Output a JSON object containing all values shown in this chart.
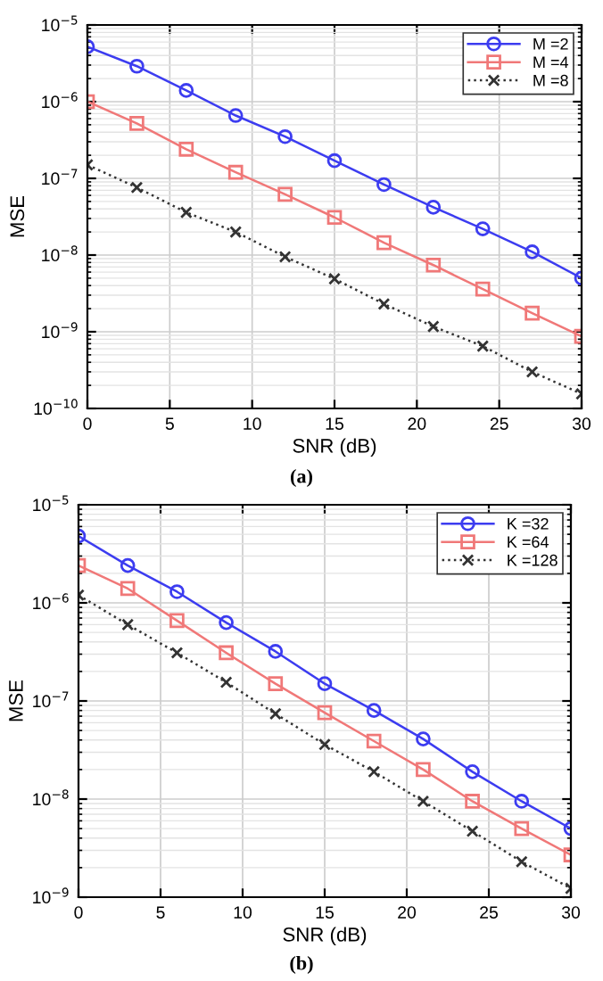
{
  "chart_data": [
    {
      "type": "line",
      "xlabel": "SNR (dB)",
      "ylabel": "MSE",
      "annotations": [
        "(a)"
      ],
      "log": "y",
      "grid": true,
      "legend": "top right",
      "x": [
        0,
        3,
        6,
        9,
        12,
        15,
        18,
        21,
        24,
        27,
        30
      ],
      "xlim": [
        0,
        30
      ],
      "xticks": [
        0,
        5,
        10,
        15,
        20,
        25,
        30
      ],
      "ylim": [
        1e-10,
        1e-05
      ],
      "yticks": [
        {
          "value": 1e-10,
          "label": "10$^{−10}$"
        },
        {
          "value": 1e-09,
          "label": "10$^{−9}$"
        },
        {
          "value": 1e-08,
          "label": "10$^{−8}$"
        },
        {
          "value": 1e-07,
          "label": "10$^{−7}$"
        },
        {
          "value": 1e-06,
          "label": "10$^{−6}$"
        },
        {
          "value": 1e-05,
          "label": "10$^{−5}$"
        }
      ],
      "series": [
        {
          "name": "M =2",
          "color": "#3c3cf0",
          "marker": "circle",
          "line_style": "solid",
          "values": [
            5.2e-06,
            2.9e-06,
            1.4e-06,
            6.6e-07,
            3.5e-07,
            1.7e-07,
            8.3e-08,
            4.2e-08,
            2.2e-08,
            1.1e-08,
            5e-09
          ]
        },
        {
          "name": "M =4",
          "color": "#f07878",
          "marker": "square",
          "line_style": "solid",
          "values": [
            1e-06,
            5.2e-07,
            2.4e-07,
            1.2e-07,
            6.2e-08,
            3.1e-08,
            1.45e-08,
            7.4e-09,
            3.6e-09,
            1.75e-09,
            8.7e-10
          ]
        },
        {
          "name": "M =8",
          "color": "#333333",
          "marker": "cross",
          "line_style": "dotted",
          "values": [
            1.5e-07,
            7.6e-08,
            3.6e-08,
            2e-08,
            9.5e-09,
            4.9e-09,
            2.3e-09,
            1.17e-09,
            6.5e-10,
            3e-10,
            1.55e-10
          ]
        }
      ]
    },
    {
      "type": "line",
      "xlabel": "SNR (dB)",
      "ylabel": "MSE",
      "annotations": [
        "(b)"
      ],
      "log": "y",
      "grid": true,
      "legend": "top right",
      "x": [
        0,
        3,
        6,
        9,
        12,
        15,
        18,
        21,
        24,
        27,
        30
      ],
      "xlim": [
        0,
        30
      ],
      "xticks": [
        0,
        5,
        10,
        15,
        20,
        25,
        30
      ],
      "ylim": [
        1e-09,
        1e-05
      ],
      "yticks": [
        {
          "value": 1e-09,
          "label": "10$^{−9}$"
        },
        {
          "value": 1e-08,
          "label": "10$^{−8}$"
        },
        {
          "value": 1e-07,
          "label": "10$^{−7}$"
        },
        {
          "value": 1e-06,
          "label": "10$^{−6}$"
        },
        {
          "value": 1e-05,
          "label": "10$^{−5}$"
        }
      ],
      "series": [
        {
          "name": "K =32",
          "color": "#3c3cf0",
          "marker": "circle",
          "line_style": "solid",
          "values": [
            4.8e-06,
            2.4e-06,
            1.3e-06,
            6.3e-07,
            3.2e-07,
            1.5e-07,
            8e-08,
            4.1e-08,
            1.9e-08,
            9.5e-09,
            5e-09
          ]
        },
        {
          "name": "K =64",
          "color": "#f07878",
          "marker": "square",
          "line_style": "solid",
          "values": [
            2.4e-06,
            1.4e-06,
            6.6e-07,
            3.1e-07,
            1.5e-07,
            7.6e-08,
            3.9e-08,
            2e-08,
            9.5e-09,
            5e-09,
            2.7e-09
          ]
        },
        {
          "name": "K =128",
          "color": "#333333",
          "marker": "cross",
          "line_style": "dotted",
          "values": [
            1.2e-06,
            6e-07,
            3.1e-07,
            1.55e-07,
            7.4e-08,
            3.6e-08,
            1.9e-08,
            9.5e-09,
            4.7e-09,
            2.3e-09,
            1.23e-09
          ]
        }
      ]
    }
  ]
}
